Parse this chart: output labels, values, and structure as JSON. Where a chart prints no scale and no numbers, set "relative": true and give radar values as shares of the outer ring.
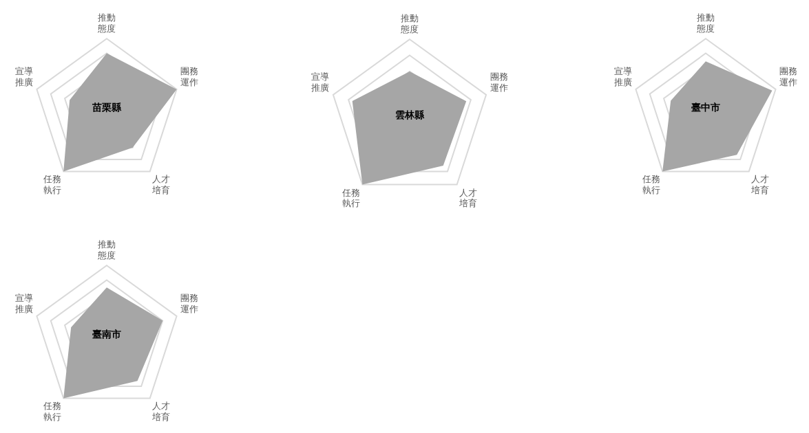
{
  "chart_data": [
    {
      "type": "radar",
      "title": "苗栗縣",
      "relative": true,
      "grid": true,
      "categories": [
        "推動態度",
        "團務運作",
        "人才培育",
        "任務執行",
        "宣導推廣"
      ],
      "series": [
        {
          "color": "#a6a6a6",
          "values": [
            0.8,
            1.0,
            0.6,
            1.0,
            0.53
          ]
        }
      ]
    },
    {
      "type": "radar",
      "title": "雲林縣",
      "relative": true,
      "grid": true,
      "categories": [
        "推動態度",
        "團務運作",
        "人才培育",
        "任務執行",
        "宣導推廣"
      ],
      "series": [
        {
          "color": "#a6a6a6",
          "values": [
            0.6,
            0.74,
            0.71,
            1.0,
            0.75
          ]
        }
      ]
    },
    {
      "type": "radar",
      "title": "臺中市",
      "relative": true,
      "grid": true,
      "categories": [
        "推動態度",
        "團務運作",
        "人才培育",
        "任務執行",
        "宣導推廣"
      ],
      "series": [
        {
          "color": "#a6a6a6",
          "values": [
            0.69,
            0.95,
            0.72,
            1.0,
            0.5
          ]
        }
      ]
    },
    {
      "type": "radar",
      "title": "臺南市",
      "relative": true,
      "grid": true,
      "categories": [
        "推動態度",
        "團務運作",
        "人才培育",
        "任務執行",
        "宣導推廣"
      ],
      "series": [
        {
          "color": "#a6a6a6",
          "values": [
            0.7,
            0.8,
            0.71,
            1.0,
            0.51
          ]
        }
      ]
    }
  ]
}
